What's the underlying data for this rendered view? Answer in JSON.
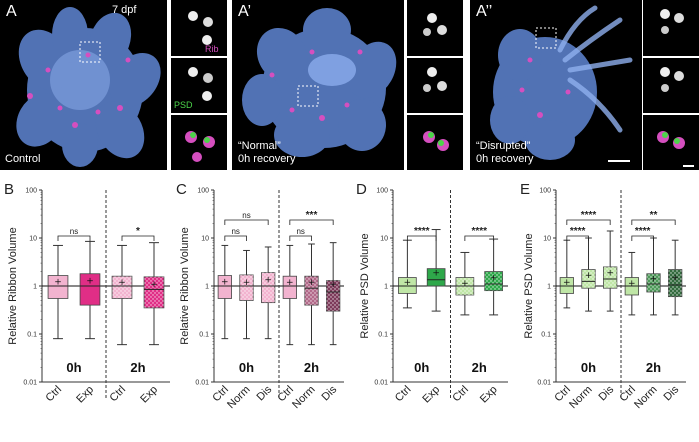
{
  "panels_top": [
    {
      "letter": "A",
      "age": "7 dpf",
      "caption": "Control"
    },
    {
      "letter": "A’",
      "caption": "“Normal”\n0h recovery"
    },
    {
      "letter": "A’’",
      "caption": "“Disrupted”\n0h recovery"
    }
  ],
  "inset_labels": {
    "rib": "Rib",
    "psd": "PSD"
  },
  "colors": {
    "rib": "#d54fbf",
    "psd": "#4cd44a",
    "tissue": "#5a7fc8"
  },
  "chart_data": [
    {
      "type": "box",
      "panel": "B",
      "ylabel": "Relative Ribbon Volume",
      "yscale": "log",
      "ylim": [
        0.01,
        100
      ],
      "yticks": [
        "100",
        "10",
        "1",
        "0.1",
        "0.01"
      ],
      "groups": [
        "0h",
        "2h"
      ],
      "categories": [
        "Ctrl",
        "Exp",
        "Ctrl",
        "Exp"
      ],
      "colors": [
        "#f2b3cf",
        "#e02e86",
        "#f2b3cf",
        "#e02e86"
      ],
      "patterned": [
        false,
        false,
        true,
        true
      ],
      "boxes": [
        {
          "min": 0.08,
          "q1": 0.55,
          "median": 1.0,
          "q3": 1.65,
          "max": 7.0,
          "mean": 1.25
        },
        {
          "min": 0.08,
          "q1": 0.4,
          "median": 1.0,
          "q3": 1.8,
          "max": 8.5,
          "mean": 1.3
        },
        {
          "min": 0.06,
          "q1": 0.55,
          "median": 1.0,
          "q3": 1.6,
          "max": 7.0,
          "mean": 1.2
        },
        {
          "min": 0.06,
          "q1": 0.35,
          "median": 0.85,
          "q3": 1.55,
          "max": 8.0,
          "mean": 1.1
        }
      ],
      "significance": [
        {
          "from": 0,
          "to": 1,
          "label": "ns"
        },
        {
          "from": 2,
          "to": 3,
          "label": "*"
        }
      ]
    },
    {
      "type": "box",
      "panel": "C",
      "ylabel": "Relative Ribbon Volume",
      "yscale": "log",
      "ylim": [
        0.01,
        100
      ],
      "yticks": [
        "100",
        "10",
        "1",
        "0.1",
        "0.01"
      ],
      "groups": [
        "0h",
        "2h"
      ],
      "categories": [
        "Ctrl",
        "Norm",
        "Dis",
        "Ctrl",
        "Norm",
        "Dis"
      ],
      "colors": [
        "#f2b3cf",
        "#f2b3cf",
        "#f2b3cf",
        "#f2b3cf",
        "#b36a8a",
        "#7d3a5a"
      ],
      "patterned": [
        false,
        true,
        true,
        false,
        true,
        true
      ],
      "boxes": [
        {
          "min": 0.08,
          "q1": 0.55,
          "median": 1.0,
          "q3": 1.65,
          "max": 7.0,
          "mean": 1.25
        },
        {
          "min": 0.08,
          "q1": 0.5,
          "median": 1.0,
          "q3": 1.7,
          "max": 5.5,
          "mean": 1.2
        },
        {
          "min": 0.08,
          "q1": 0.45,
          "median": 1.0,
          "q3": 1.9,
          "max": 6.5,
          "mean": 1.35
        },
        {
          "min": 0.06,
          "q1": 0.55,
          "median": 1.0,
          "q3": 1.6,
          "max": 7.0,
          "mean": 1.2
        },
        {
          "min": 0.06,
          "q1": 0.4,
          "median": 0.9,
          "q3": 1.6,
          "max": 7.5,
          "mean": 1.2
        },
        {
          "min": 0.06,
          "q1": 0.3,
          "median": 0.75,
          "q3": 1.3,
          "max": 8.0,
          "mean": 1.1
        }
      ],
      "significance": [
        {
          "from": 0,
          "to": 1,
          "label": "ns"
        },
        {
          "from": 0,
          "to": 2,
          "label": "ns"
        },
        {
          "from": 3,
          "to": 4,
          "label": "ns"
        },
        {
          "from": 3,
          "to": 5,
          "label": "***"
        }
      ]
    },
    {
      "type": "box",
      "panel": "D",
      "ylabel": "Relative PSD Volume",
      "yscale": "log",
      "ylim": [
        0.01,
        100
      ],
      "yticks": [
        "100",
        "10",
        "1",
        "0.1",
        "0.01"
      ],
      "groups": [
        "0h",
        "2h"
      ],
      "categories": [
        "Ctrl",
        "Exp",
        "Ctrl",
        "Exp"
      ],
      "colors": [
        "#bfe6a6",
        "#2ea84a",
        "#bfe6a6",
        "#2ea84a"
      ],
      "patterned": [
        false,
        false,
        true,
        true
      ],
      "boxes": [
        {
          "min": 0.35,
          "q1": 0.7,
          "median": 1.0,
          "q3": 1.5,
          "max": 9.0,
          "mean": 1.2
        },
        {
          "min": 0.3,
          "q1": 1.0,
          "median": 1.35,
          "q3": 2.3,
          "max": 15.0,
          "mean": 1.9
        },
        {
          "min": 0.25,
          "q1": 0.65,
          "median": 1.0,
          "q3": 1.5,
          "max": 5.0,
          "mean": 1.15
        },
        {
          "min": 0.25,
          "q1": 0.8,
          "median": 1.1,
          "q3": 2.0,
          "max": 9.5,
          "mean": 1.5
        }
      ],
      "significance": [
        {
          "from": 0,
          "to": 1,
          "label": "****"
        },
        {
          "from": 2,
          "to": 3,
          "label": "****"
        }
      ]
    },
    {
      "type": "box",
      "panel": "E",
      "ylabel": "Relative PSD Volume",
      "yscale": "log",
      "ylim": [
        0.01,
        100
      ],
      "yticks": [
        "100",
        "10",
        "1",
        "0.1",
        "0.01"
      ],
      "groups": [
        "0h",
        "2h"
      ],
      "categories": [
        "Ctrl",
        "Norm",
        "Dis",
        "Ctrl",
        "Norm",
        "Dis"
      ],
      "colors": [
        "#bfe6a6",
        "#bfe6a6",
        "#bfe6a6",
        "#bfe6a6",
        "#4e9a5a",
        "#336b3e"
      ],
      "patterned": [
        false,
        true,
        true,
        false,
        true,
        true
      ],
      "boxes": [
        {
          "min": 0.35,
          "q1": 0.7,
          "median": 1.0,
          "q3": 1.5,
          "max": 9.0,
          "mean": 1.2
        },
        {
          "min": 0.3,
          "q1": 0.9,
          "median": 1.25,
          "q3": 2.2,
          "max": 10.0,
          "mean": 1.7
        },
        {
          "min": 0.3,
          "q1": 0.9,
          "median": 1.4,
          "q3": 2.5,
          "max": 14.0,
          "mean": 1.9
        },
        {
          "min": 0.25,
          "q1": 0.65,
          "median": 1.0,
          "q3": 1.5,
          "max": 5.0,
          "mean": 1.15
        },
        {
          "min": 0.25,
          "q1": 0.75,
          "median": 1.1,
          "q3": 1.8,
          "max": 10.0,
          "mean": 1.45
        },
        {
          "min": 0.25,
          "q1": 0.6,
          "median": 1.05,
          "q3": 2.2,
          "max": 9.0,
          "mean": 1.5
        }
      ],
      "significance": [
        {
          "from": 0,
          "to": 1,
          "label": "****"
        },
        {
          "from": 0,
          "to": 2,
          "label": "****"
        },
        {
          "from": 3,
          "to": 4,
          "label": "****"
        },
        {
          "from": 3,
          "to": 5,
          "label": "**"
        }
      ]
    }
  ]
}
